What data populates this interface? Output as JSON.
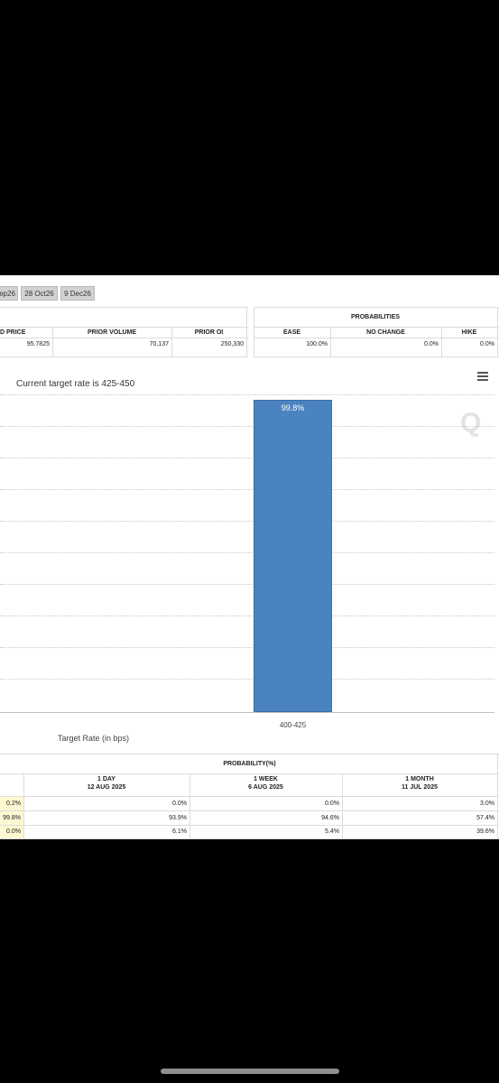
{
  "meeting_tabs": [
    "ep26",
    "28 Oct26",
    "9 Dec26"
  ],
  "quote_table": {
    "headers": [
      "D PRICE",
      "PRIOR VOLUME",
      "PRIOR OI"
    ],
    "values": [
      "95.7825",
      "70,137",
      "250,330"
    ]
  },
  "probabilities": {
    "title": "PROBABILITIES",
    "headers": [
      "EASE",
      "NO CHANGE",
      "HIKE"
    ],
    "values": [
      "100.0%",
      "0.0%",
      "0.0%"
    ]
  },
  "chart_data": {
    "type": "bar",
    "title": "Current target rate is 425-450",
    "xlabel": "Target Rate (in bps)",
    "ylabel": "",
    "categories": [
      "400-425"
    ],
    "values": [
      99.8
    ],
    "data_labels": [
      "99.8%"
    ],
    "ylim": [
      0,
      100
    ],
    "grid": true,
    "menu_icon": "hamburger-menu-icon",
    "watermark": "Q",
    "bar_color": "#4a83bf"
  },
  "history": {
    "title": "PROBABILITY(%)",
    "columns": [
      {
        "period": "1 DAY",
        "date": "12 AUG 2025"
      },
      {
        "period": "1 WEEK",
        "date": "6 AUG 2025"
      },
      {
        "period": "1 MONTH",
        "date": "11 JUL 2025"
      }
    ],
    "rows": [
      {
        "now": "0.2%",
        "values": [
          "0.0%",
          "0.0%",
          "3.0%"
        ]
      },
      {
        "now": "99.8%",
        "values": [
          "93.9%",
          "94.6%",
          "57.4%"
        ]
      },
      {
        "now": "0.0%",
        "values": [
          "6.1%",
          "5.4%",
          "39.6%"
        ]
      }
    ]
  }
}
